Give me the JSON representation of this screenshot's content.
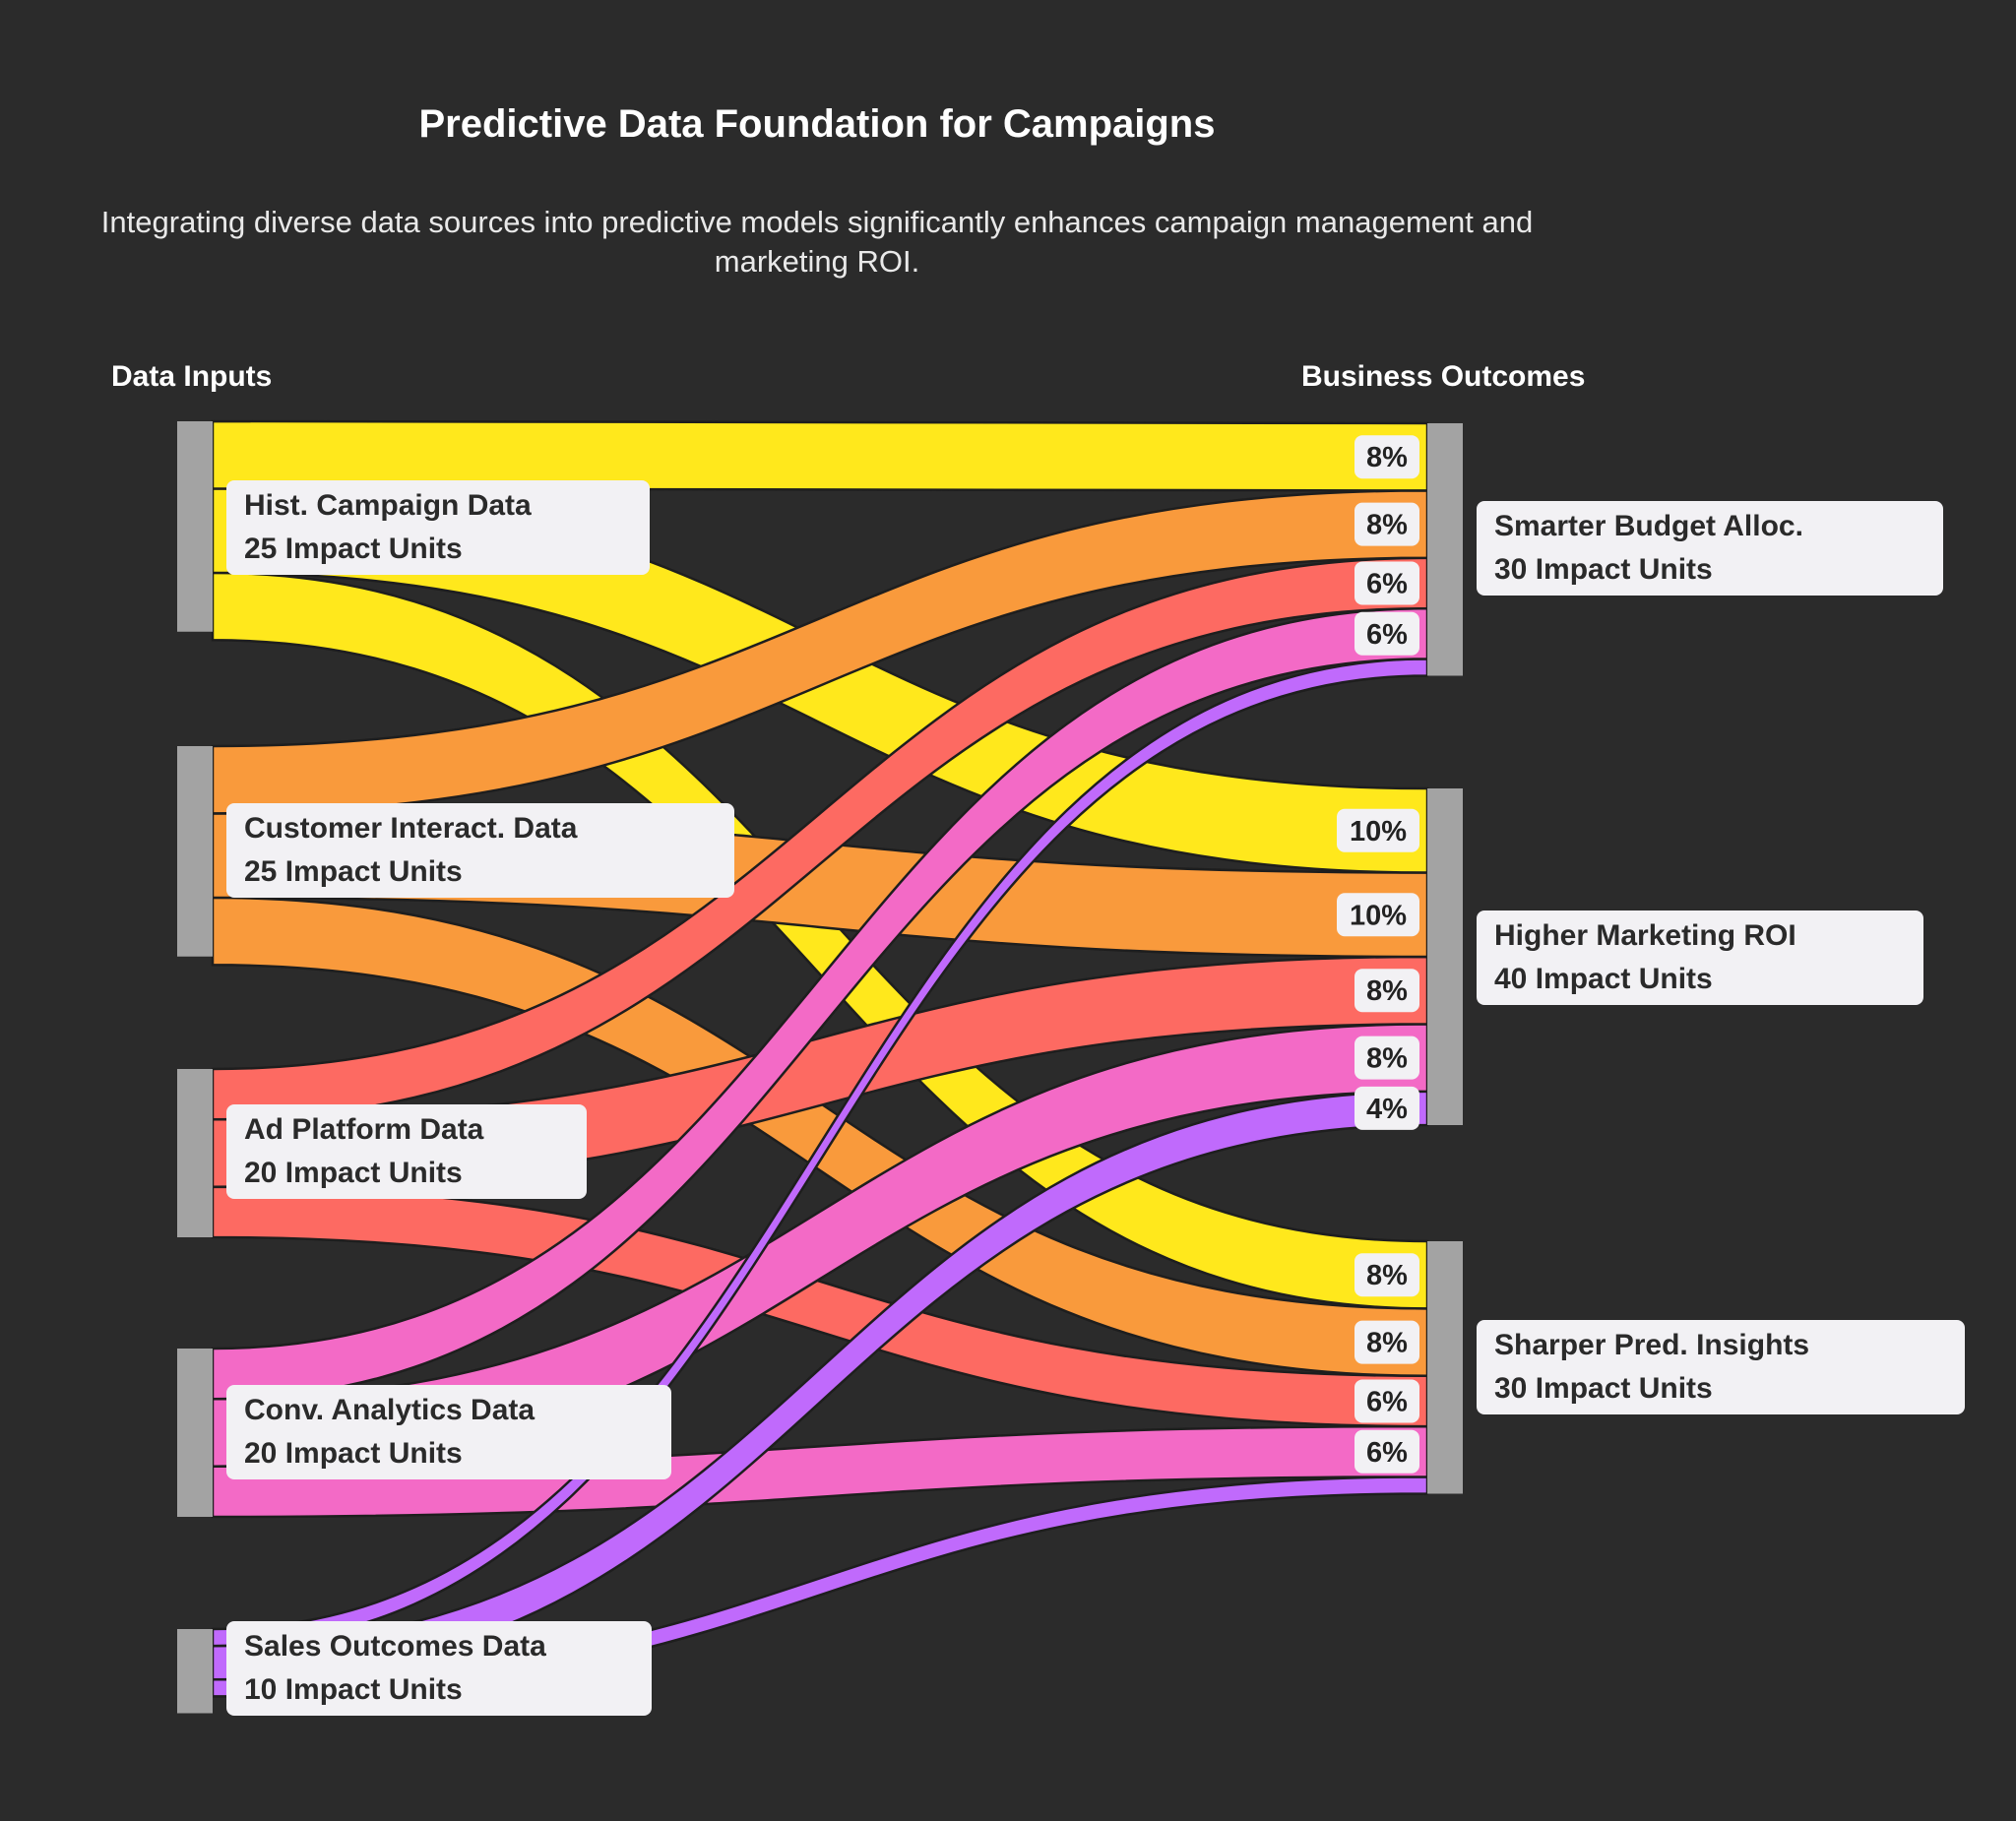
{
  "title": "Predictive Data Foundation for Campaigns",
  "subtitle": "Integrating diverse data sources into predictive models significantly enhances campaign management and marketing ROI.",
  "columns": {
    "left": "Data Inputs",
    "right": "Business Outcomes"
  },
  "colors": {
    "background": "#2b2b2b",
    "node_bar": "#a3a3a3",
    "label_bg": "#f2f1f4",
    "hist": "#ffe81c",
    "customer": "#f99a3c",
    "adplatform": "#fd6a62",
    "conv": "#f36ac6",
    "sales": "#c06afc"
  },
  "chart_data": {
    "type": "sankey",
    "unit": "Impact Units",
    "sources": [
      {
        "id": "hist",
        "name": "Hist. Campaign Data",
        "value": 25,
        "value_label": "25 Impact Units",
        "color": "#ffe81c"
      },
      {
        "id": "customer",
        "name": "Customer Interact. Data",
        "value": 25,
        "value_label": "25 Impact Units",
        "color": "#f99a3c"
      },
      {
        "id": "adplatform",
        "name": "Ad Platform Data",
        "value": 20,
        "value_label": "20 Impact Units",
        "color": "#fd6a62"
      },
      {
        "id": "conv",
        "name": "Conv. Analytics Data",
        "value": 20,
        "value_label": "20 Impact Units",
        "color": "#f36ac6"
      },
      {
        "id": "sales",
        "name": "Sales Outcomes Data",
        "value": 10,
        "value_label": "10 Impact Units",
        "color": "#c06afc"
      }
    ],
    "targets": [
      {
        "id": "budget",
        "name": "Smarter Budget Alloc.",
        "value": 30,
        "value_label": "30 Impact Units"
      },
      {
        "id": "roi",
        "name": "Higher Marketing ROI",
        "value": 40,
        "value_label": "40 Impact Units"
      },
      {
        "id": "insights",
        "name": "Sharper Pred. Insights",
        "value": 30,
        "value_label": "30 Impact Units"
      }
    ],
    "flows": [
      {
        "source": "hist",
        "target": "budget",
        "value": 8,
        "label": "8%"
      },
      {
        "source": "customer",
        "target": "budget",
        "value": 8,
        "label": "8%"
      },
      {
        "source": "adplatform",
        "target": "budget",
        "value": 6,
        "label": "6%"
      },
      {
        "source": "conv",
        "target": "budget",
        "value": 6,
        "label": "6%"
      },
      {
        "source": "sales",
        "target": "budget",
        "value": 2
      },
      {
        "source": "hist",
        "target": "roi",
        "value": 10,
        "label": "10%"
      },
      {
        "source": "customer",
        "target": "roi",
        "value": 10,
        "label": "10%"
      },
      {
        "source": "adplatform",
        "target": "roi",
        "value": 8,
        "label": "8%"
      },
      {
        "source": "conv",
        "target": "roi",
        "value": 8,
        "label": "8%"
      },
      {
        "source": "sales",
        "target": "roi",
        "value": 4,
        "label": "4%"
      },
      {
        "source": "hist",
        "target": "insights",
        "value": 8,
        "label": "8%"
      },
      {
        "source": "customer",
        "target": "insights",
        "value": 8,
        "label": "8%"
      },
      {
        "source": "adplatform",
        "target": "insights",
        "value": 6,
        "label": "6%"
      },
      {
        "source": "conv",
        "target": "insights",
        "value": 6,
        "label": "6%"
      },
      {
        "source": "sales",
        "target": "insights",
        "value": 2
      }
    ]
  }
}
